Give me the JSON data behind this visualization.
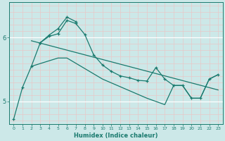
{
  "title": "",
  "xlabel": "Humidex (Indice chaleur)",
  "bg_color": "#cce8e8",
  "line_color": "#1a7a6e",
  "grid_color_white": "#ffffff",
  "grid_color_pink": "#e8c8c8",
  "xlim": [
    -0.5,
    23.5
  ],
  "ylim": [
    4.65,
    6.55
  ],
  "yticks": [
    5,
    6
  ],
  "xticks": [
    0,
    1,
    2,
    3,
    4,
    5,
    6,
    7,
    8,
    9,
    10,
    11,
    12,
    13,
    14,
    15,
    16,
    17,
    18,
    19,
    20,
    21,
    22,
    23
  ],
  "series": [
    {
      "x": [
        0,
        1,
        2,
        3,
        4,
        5,
        6,
        7,
        8,
        9,
        10,
        11,
        12,
        13,
        14,
        15,
        16,
        17,
        18,
        19,
        20,
        21,
        22,
        23
      ],
      "y": [
        4.72,
        5.22,
        5.55,
        5.92,
        6.02,
        6.06,
        6.27,
        6.22,
        6.05,
        5.73,
        5.57,
        5.47,
        5.4,
        5.37,
        5.33,
        5.32,
        5.53,
        5.35,
        5.25,
        5.25,
        5.05,
        5.05,
        5.35,
        5.42
      ],
      "marker": true
    },
    {
      "x": [
        3,
        4,
        5,
        6,
        7
      ],
      "y": [
        5.92,
        6.04,
        6.14,
        6.32,
        6.25
      ],
      "marker": true
    },
    {
      "x": [
        2,
        23
      ],
      "y": [
        5.95,
        5.18
      ],
      "marker": false
    },
    {
      "x": [
        2,
        5,
        6,
        10,
        15,
        17,
        18,
        19,
        20,
        21,
        22,
        23
      ],
      "y": [
        5.55,
        5.68,
        5.68,
        5.35,
        5.05,
        4.95,
        5.25,
        5.25,
        5.05,
        5.05,
        5.35,
        5.42
      ],
      "marker": false
    }
  ]
}
